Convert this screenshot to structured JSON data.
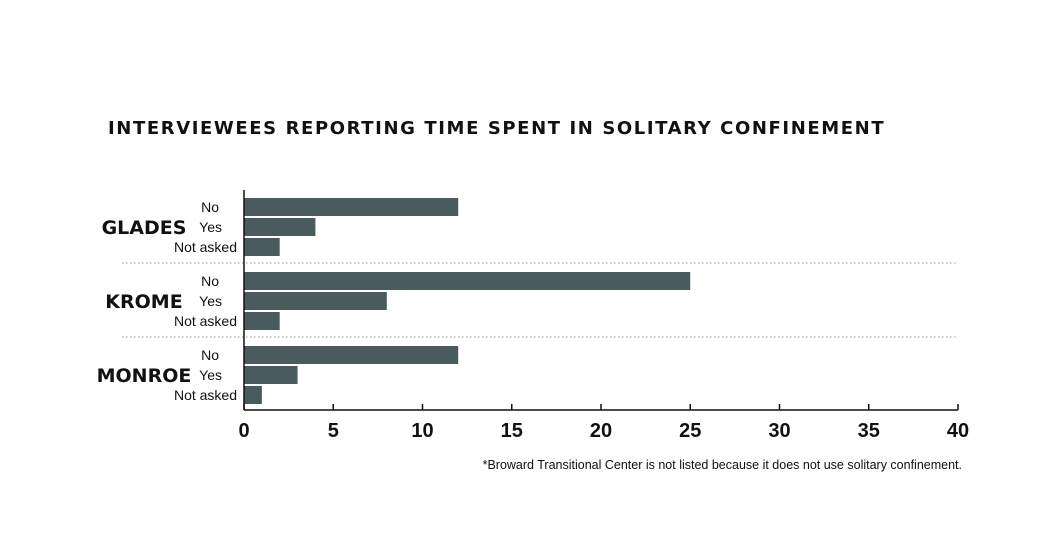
{
  "chart_data": {
    "type": "bar",
    "orientation": "horizontal",
    "title": "INTERVIEWEES REPORTING TIME SPENT IN SOLITARY CONFINEMENT",
    "groups": [
      {
        "name": "GLADES",
        "categories": [
          "No",
          "Yes",
          "Not asked"
        ],
        "values": [
          12,
          4,
          2
        ]
      },
      {
        "name": "KROME",
        "categories": [
          "No",
          "Yes",
          "Not asked"
        ],
        "values": [
          25,
          8,
          2
        ]
      },
      {
        "name": "MONROE",
        "categories": [
          "No",
          "Yes",
          "Not asked"
        ],
        "values": [
          12,
          3,
          1
        ]
      }
    ],
    "xlim": [
      0,
      40
    ],
    "xticks": [
      0,
      5,
      10,
      15,
      20,
      25,
      30,
      35,
      40
    ],
    "xlabel": "",
    "ylabel": "",
    "grid": false,
    "bar_color": "#4a5b5d",
    "footnote": "*Broward Transitional Center is not listed because it does not use solitary confinement."
  }
}
